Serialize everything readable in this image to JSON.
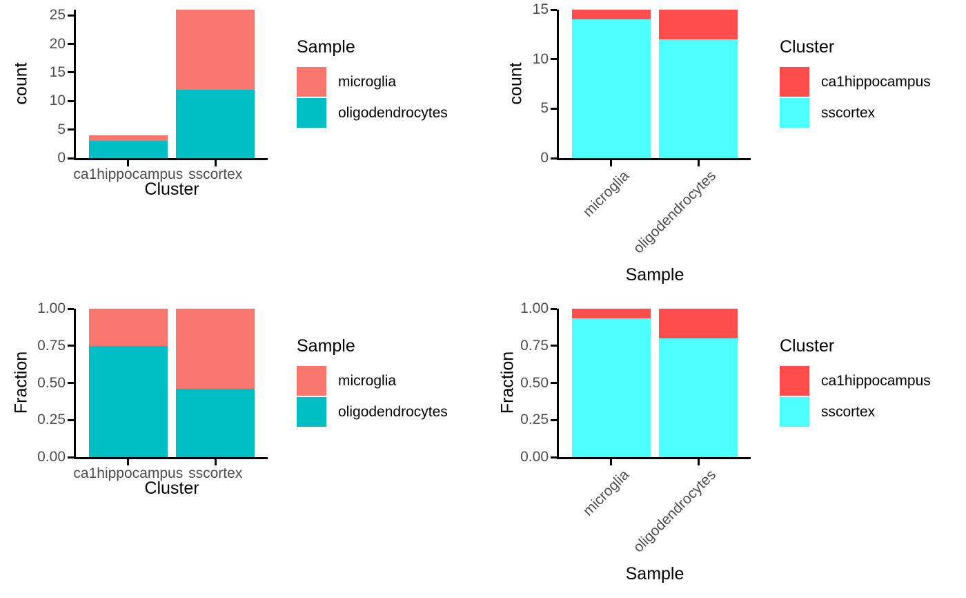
{
  "figure": {
    "background": "#ffffff",
    "layout": "2x2 grid of stacked bar charts",
    "palette": {
      "sample_microglia": "#F8766D",
      "sample_oligodendrocytes": "#00BFC4",
      "cluster_ca1hippocampus": "#FF4D4D",
      "cluster_sscortex": "#4DFFFF"
    }
  },
  "chart_data": [
    {
      "type": "bar",
      "stacked": true,
      "position": "top-left",
      "title": "",
      "xlabel": "Cluster",
      "ylabel": "count",
      "categories": [
        "ca1hippocampus",
        "sscortex"
      ],
      "series": [
        {
          "name": "oligodendrocytes",
          "color": "#00BFC4",
          "values": [
            3,
            12
          ]
        },
        {
          "name": "microglia",
          "color": "#F8766D",
          "values": [
            1,
            14
          ]
        }
      ],
      "ylim": [
        0,
        26
      ],
      "yticks": [
        0,
        5,
        10,
        15,
        20,
        25
      ],
      "ytick_labels": [
        "0",
        "5",
        "10",
        "15",
        "20",
        "25"
      ],
      "x_tick_rotation": 0,
      "grid": false,
      "legend": {
        "title": "Sample",
        "position": "right",
        "items": [
          {
            "label": "microglia",
            "color": "#F8766D"
          },
          {
            "label": "oligodendrocytes",
            "color": "#00BFC4"
          }
        ]
      }
    },
    {
      "type": "bar",
      "stacked": true,
      "position": "top-right",
      "title": "",
      "xlabel": "Sample",
      "ylabel": "count",
      "categories": [
        "microglia",
        "oligodendrocytes"
      ],
      "series": [
        {
          "name": "sscortex",
          "color": "#4DFFFF",
          "values": [
            14,
            12
          ]
        },
        {
          "name": "ca1hippocampus",
          "color": "#FF4D4D",
          "values": [
            1,
            3
          ]
        }
      ],
      "ylim": [
        0,
        15
      ],
      "yticks": [
        0,
        5,
        10,
        15
      ],
      "ytick_labels": [
        "0",
        "5",
        "10",
        "15"
      ],
      "x_tick_rotation": 45,
      "grid": false,
      "legend": {
        "title": "Cluster",
        "position": "right",
        "items": [
          {
            "label": "ca1hippocampus",
            "color": "#FF4D4D"
          },
          {
            "label": "sscortex",
            "color": "#4DFFFF"
          }
        ]
      }
    },
    {
      "type": "bar",
      "stacked": true,
      "position": "bottom-left",
      "title": "",
      "xlabel": "Cluster",
      "ylabel": "Fraction",
      "categories": [
        "ca1hippocampus",
        "sscortex"
      ],
      "series": [
        {
          "name": "oligodendrocytes",
          "color": "#00BFC4",
          "values": [
            0.75,
            0.4615
          ]
        },
        {
          "name": "microglia",
          "color": "#F8766D",
          "values": [
            0.25,
            0.5385
          ]
        }
      ],
      "ylim": [
        0,
        1
      ],
      "yticks": [
        0,
        0.25,
        0.5,
        0.75,
        1
      ],
      "ytick_labels": [
        "0.00",
        "0.25",
        "0.50",
        "0.75",
        "1.00"
      ],
      "x_tick_rotation": 0,
      "grid": false,
      "legend": {
        "title": "Sample",
        "position": "right",
        "items": [
          {
            "label": "microglia",
            "color": "#F8766D"
          },
          {
            "label": "oligodendrocytes",
            "color": "#00BFC4"
          }
        ]
      }
    },
    {
      "type": "bar",
      "stacked": true,
      "position": "bottom-right",
      "title": "",
      "xlabel": "Sample",
      "ylabel": "Fraction",
      "categories": [
        "microglia",
        "oligodendrocytes"
      ],
      "series": [
        {
          "name": "sscortex",
          "color": "#4DFFFF",
          "values": [
            0.9333,
            0.8
          ]
        },
        {
          "name": "ca1hippocampus",
          "color": "#FF4D4D",
          "values": [
            0.0667,
            0.2
          ]
        }
      ],
      "ylim": [
        0,
        1
      ],
      "yticks": [
        0,
        0.25,
        0.5,
        0.75,
        1
      ],
      "ytick_labels": [
        "0.00",
        "0.25",
        "0.50",
        "0.75",
        "1.00"
      ],
      "x_tick_rotation": 45,
      "grid": false,
      "legend": {
        "title": "Cluster",
        "position": "right",
        "items": [
          {
            "label": "ca1hippocampus",
            "color": "#FF4D4D"
          },
          {
            "label": "sscortex",
            "color": "#4DFFFF"
          }
        ]
      }
    }
  ]
}
